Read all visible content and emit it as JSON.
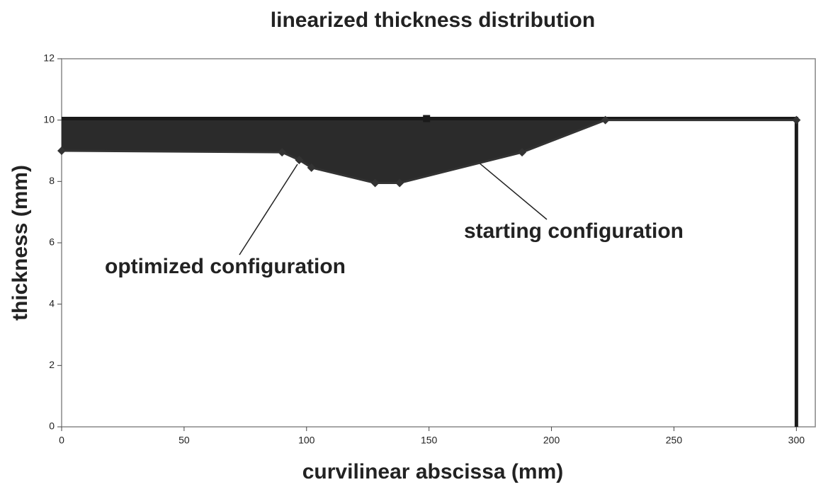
{
  "chart_data": {
    "type": "line",
    "title": "linearized thickness distribution",
    "xlabel": "curvilinear abscissa (mm)",
    "ylabel": "thickness (mm)",
    "annotations": [
      "optimized configuration",
      "starting configuration"
    ],
    "series": [
      {
        "name": "starting configuration",
        "color": "#1a1a1a",
        "x": [
          0,
          149,
          300,
          300
        ],
        "values": [
          10.05,
          10.05,
          10.05,
          0
        ]
      },
      {
        "name": "optimized configuration",
        "color": "#333333",
        "x": [
          0,
          90,
          97,
          102,
          128,
          138,
          188,
          222,
          300
        ],
        "values": [
          9,
          8.95,
          8.7,
          8.45,
          7.95,
          7.95,
          8.95,
          10,
          10
        ]
      }
    ],
    "xlim": [
      0,
      308
    ],
    "xticks": [
      0,
      50,
      100,
      150,
      200,
      250,
      300
    ],
    "ylim": [
      0,
      12
    ],
    "yticks": [
      0,
      2,
      4,
      6,
      8,
      10,
      12
    ]
  }
}
